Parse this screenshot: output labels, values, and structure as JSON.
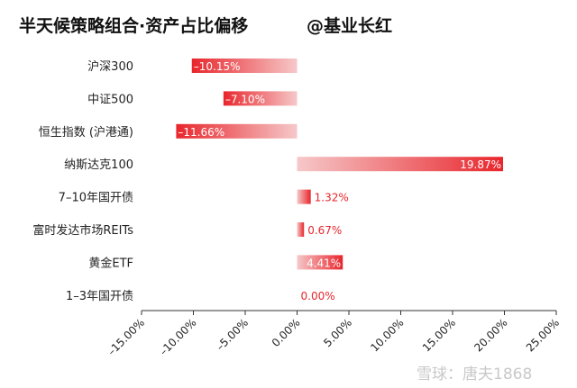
{
  "title": "半天候策略组合·资产占比偏移",
  "author": "@基业长红",
  "watermark": "雪球：唐夫1868",
  "colors": {
    "bar": "#e8262c",
    "axis": "#333333",
    "label_in": "#ffffff",
    "label_out": "#e8262c"
  },
  "chart_data": {
    "type": "bar",
    "orientation": "horizontal",
    "categories": [
      "沪深300",
      "中证500",
      "恒生指数 (沪港通)",
      "纳斯达克100",
      "7–10年国开债",
      "富时发达市场REITs",
      "黄金ETF",
      "1–3年国开债"
    ],
    "values": [
      -10.15,
      -7.1,
      -11.66,
      19.87,
      1.32,
      0.67,
      4.41,
      0.0
    ],
    "data_labels": [
      "–10.15%",
      "–7.10%",
      "–11.66%",
      "19.87%",
      "1.32%",
      "0.67%",
      "4.41%",
      "0.00%"
    ],
    "xlim": [
      -15,
      25
    ],
    "xticks": [
      "–15.00%",
      "–10.00%",
      "–5.00%",
      "0.00%",
      "5.00%",
      "10.00%",
      "15.00%",
      "20.00%",
      "25.00%"
    ],
    "xtick_values": [
      -15,
      -10,
      -5,
      0,
      5,
      10,
      15,
      20,
      25
    ],
    "grid": false,
    "legend": "none"
  }
}
